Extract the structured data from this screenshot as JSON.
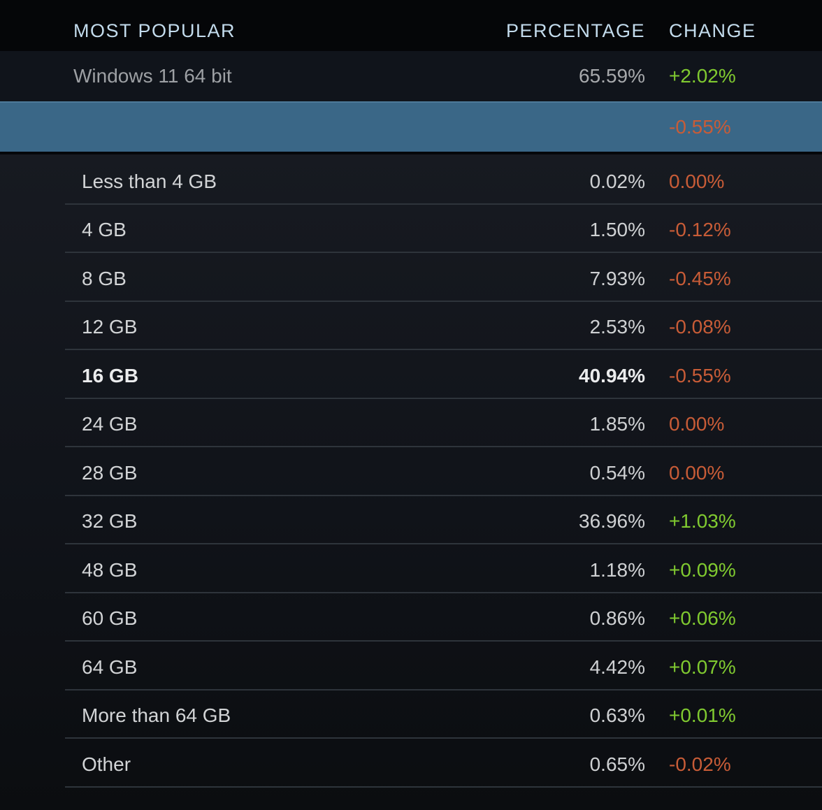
{
  "header": {
    "most_popular": "MOST POPULAR",
    "percentage": "PERCENTAGE",
    "change": "CHANGE"
  },
  "top_rows": [
    {
      "label": "Windows 11 64 bit",
      "percentage": "65.59%",
      "change": "+2.02%",
      "change_type": "positive",
      "selected": false
    },
    {
      "label": "",
      "percentage": "",
      "change": "-0.55%",
      "change_type": "negative",
      "selected": true
    }
  ],
  "sub_rows": [
    {
      "label": "Less than 4 GB",
      "percentage": "0.02%",
      "change": "0.00%",
      "change_type": "negative",
      "bold": false
    },
    {
      "label": "4 GB",
      "percentage": "1.50%",
      "change": "-0.12%",
      "change_type": "negative",
      "bold": false
    },
    {
      "label": "8 GB",
      "percentage": "7.93%",
      "change": "-0.45%",
      "change_type": "negative",
      "bold": false
    },
    {
      "label": "12 GB",
      "percentage": "2.53%",
      "change": "-0.08%",
      "change_type": "negative",
      "bold": false
    },
    {
      "label": "16 GB",
      "percentage": "40.94%",
      "change": "-0.55%",
      "change_type": "negative",
      "bold": true
    },
    {
      "label": "24 GB",
      "percentage": "1.85%",
      "change": "0.00%",
      "change_type": "negative",
      "bold": false
    },
    {
      "label": "28 GB",
      "percentage": "0.54%",
      "change": "0.00%",
      "change_type": "negative",
      "bold": false
    },
    {
      "label": "32 GB",
      "percentage": "36.96%",
      "change": "+1.03%",
      "change_type": "positive",
      "bold": false
    },
    {
      "label": "48 GB",
      "percentage": "1.18%",
      "change": "+0.09%",
      "change_type": "positive",
      "bold": false
    },
    {
      "label": "60 GB",
      "percentage": "0.86%",
      "change": "+0.06%",
      "change_type": "positive",
      "bold": false
    },
    {
      "label": "64 GB",
      "percentage": "4.42%",
      "change": "+0.07%",
      "change_type": "positive",
      "bold": false
    },
    {
      "label": "More than 64 GB",
      "percentage": "0.63%",
      "change": "+0.01%",
      "change_type": "positive",
      "bold": false
    },
    {
      "label": "Other",
      "percentage": "0.65%",
      "change": "-0.02%",
      "change_type": "negative",
      "bold": false
    }
  ],
  "colors": {
    "positive_change": "#80ca30",
    "negative_change": "#c85c37",
    "selected_row_bg": "#3a6787",
    "header_text": "#c3dbec",
    "row_bg": "#10141b"
  }
}
